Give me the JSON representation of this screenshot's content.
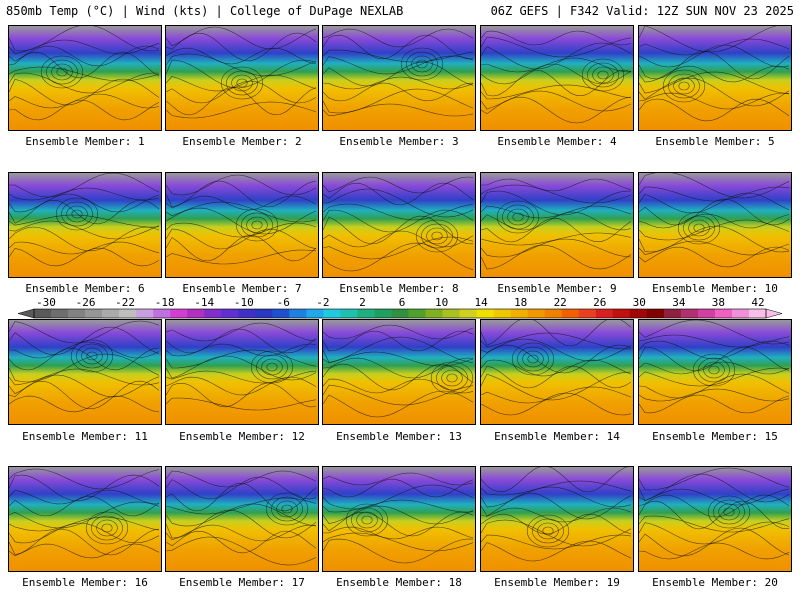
{
  "header": {
    "left": "850mb Temp (°C) | Wind (kts) | College of DuPage NEXLAB",
    "right": "06Z GEFS | F342 Valid: 12Z SUN NOV 23 2025"
  },
  "members": [
    "Ensemble Member: 1",
    "Ensemble Member: 2",
    "Ensemble Member: 3",
    "Ensemble Member: 4",
    "Ensemble Member: 5",
    "Ensemble Member: 6",
    "Ensemble Member: 7",
    "Ensemble Member: 8",
    "Ensemble Member: 9",
    "Ensemble Member: 10",
    "Ensemble Member: 11",
    "Ensemble Member: 12",
    "Ensemble Member: 13",
    "Ensemble Member: 14",
    "Ensemble Member: 15",
    "Ensemble Member: 16",
    "Ensemble Member: 17",
    "Ensemble Member: 18",
    "Ensemble Member: 19",
    "Ensemble Member: 20"
  ],
  "colorbar": {
    "ticks": [
      "-30",
      "-26",
      "-22",
      "-18",
      "-14",
      "-10",
      "-6",
      "-2",
      "2",
      "6",
      "10",
      "14",
      "18",
      "22",
      "26",
      "30",
      "34",
      "38",
      "42"
    ],
    "colors": [
      "#5a5a5a",
      "#6e6e6e",
      "#828282",
      "#969696",
      "#aaaaaa",
      "#bebebe",
      "#c8a0e0",
      "#c070e0",
      "#d040d0",
      "#b030c0",
      "#8030c8",
      "#6030d0",
      "#4030c8",
      "#2838c0",
      "#2050d0",
      "#2080e0",
      "#20a8e8",
      "#20c8e0",
      "#20c0b0",
      "#20b080",
      "#20a060",
      "#309040",
      "#50a030",
      "#80b020",
      "#a8c020",
      "#d0d020",
      "#f0e000",
      "#f0c800",
      "#f0b000",
      "#f09800",
      "#f08000",
      "#f06000",
      "#e84020",
      "#d82020",
      "#c01010",
      "#a00808",
      "#800000",
      "#902040",
      "#b03070",
      "#d040a0",
      "#f060c0",
      "#f090d8",
      "#f8c0e8"
    ]
  }
}
